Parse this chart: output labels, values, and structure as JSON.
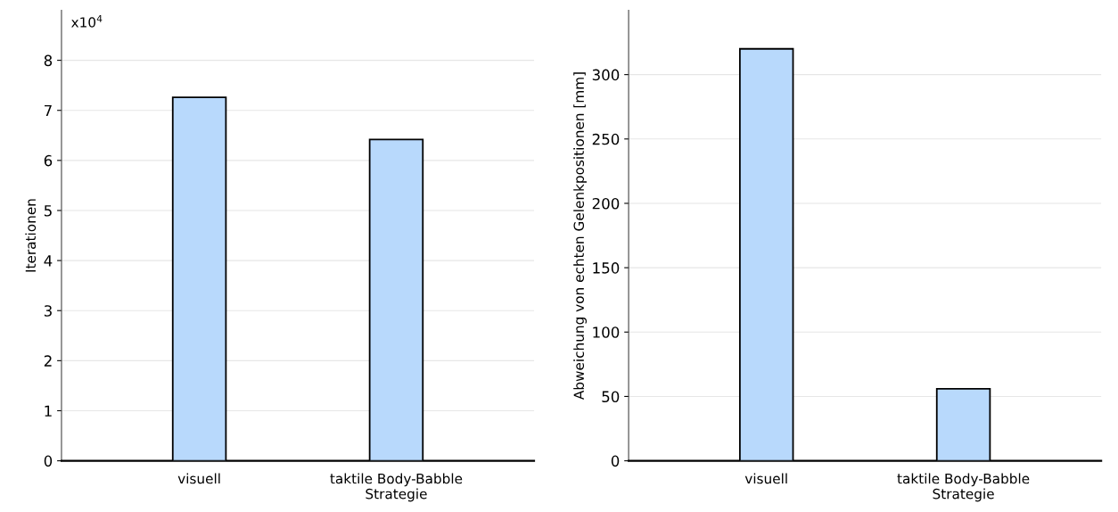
{
  "chart_data": [
    {
      "type": "bar",
      "ylabel": "Iterationen",
      "categories": [
        "visuell",
        "taktile Body-Babble\nStrategie"
      ],
      "values": [
        7.26,
        6.42
      ],
      "color": "#b8d9fc",
      "ylim": [
        0,
        9
      ],
      "yticks": [
        0,
        1,
        2,
        3,
        4,
        5,
        6,
        7,
        8
      ],
      "annotations": [
        "x10$^{4}$"
      ],
      "grid": "y"
    },
    {
      "type": "bar",
      "ylabel": "Abweichung von echten Gelenkpositionen [mm]",
      "categories": [
        "visuell",
        "taktile Body-Babble\nStrategie"
      ],
      "values": [
        320,
        56
      ],
      "color": "#b8d9fc",
      "ylim": [
        0,
        350
      ],
      "yticks": [
        0,
        50,
        100,
        150,
        200,
        250,
        300
      ],
      "grid": "y"
    }
  ]
}
